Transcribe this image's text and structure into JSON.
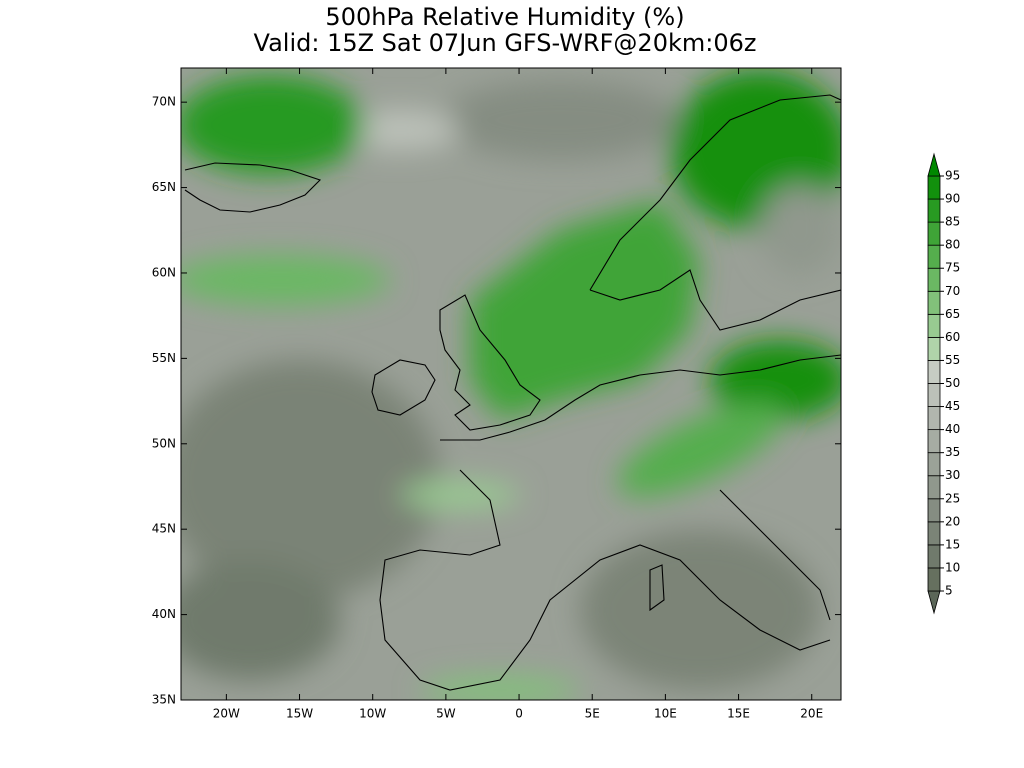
{
  "title": "500hPa Relative Humidity (%)",
  "subtitle": "Valid: 15Z Sat 07Jun GFS-WRF@20km:06z",
  "map": {
    "lonlim": [
      -23.1,
      22
    ],
    "latlim": [
      35,
      72
    ],
    "lon_ticks": [
      {
        "value": -20,
        "label": "20W"
      },
      {
        "value": -15,
        "label": "15W"
      },
      {
        "value": -10,
        "label": "10W"
      },
      {
        "value": -5,
        "label": "5W"
      },
      {
        "value": 0,
        "label": "0"
      },
      {
        "value": 5,
        "label": "5E"
      },
      {
        "value": 10,
        "label": "10E"
      },
      {
        "value": 15,
        "label": "15E"
      },
      {
        "value": 20,
        "label": "20E"
      }
    ],
    "lat_ticks": [
      {
        "value": 35,
        "label": "35N"
      },
      {
        "value": 40,
        "label": "40N"
      },
      {
        "value": 45,
        "label": "45N"
      },
      {
        "value": 50,
        "label": "50N"
      },
      {
        "value": 55,
        "label": "55N"
      },
      {
        "value": 60,
        "label": "60N"
      },
      {
        "value": 65,
        "label": "65N"
      },
      {
        "value": 70,
        "label": "70N"
      }
    ]
  },
  "colorbar": {
    "levels": [
      5,
      10,
      15,
      20,
      25,
      30,
      35,
      40,
      45,
      50,
      55,
      60,
      65,
      70,
      75,
      80,
      85,
      90,
      95
    ],
    "colors": [
      "#5b6658",
      "#66705f",
      "#707a6c",
      "#7b8477",
      "#858d82",
      "#90988d",
      "#9ba298",
      "#a6aca3",
      "#b1b6ae",
      "#bcc1b9",
      "#c6ccc3",
      "#b0d4aa",
      "#98cb91",
      "#82c17a",
      "#6bb863",
      "#55ae4d",
      "#3fa437",
      "#289a22",
      "#12900d",
      "#008800"
    ]
  }
}
